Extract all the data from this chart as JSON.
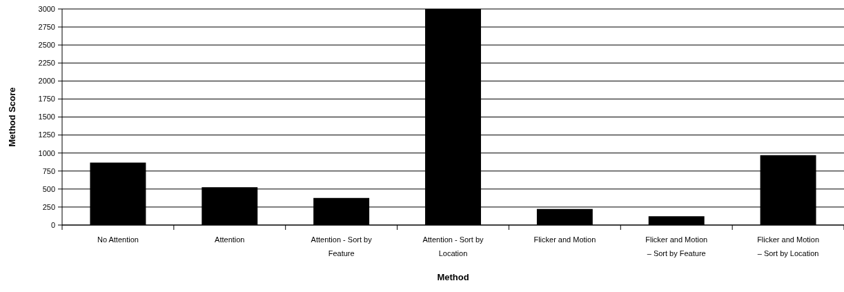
{
  "chart_data": {
    "type": "bar",
    "xlabel": "Method",
    "ylabel": "Method Score",
    "categories": [
      "No Attention",
      "Attention",
      "Attention - Sort by Feature",
      "Attention - Sort by Location",
      "Flicker and Motion",
      "Flicker and Motion – Sort by Feature",
      "Flicker and Motion – Sort by Location"
    ],
    "values": [
      867,
      525,
      376,
      3000,
      223,
      122,
      970
    ],
    "color": "#000000",
    "ylim": [
      0,
      3000
    ],
    "yticks": [
      0,
      250,
      500,
      750,
      1000,
      1250,
      1500,
      1750,
      2000,
      2250,
      2500,
      2750,
      3000
    ],
    "grid": true
  }
}
